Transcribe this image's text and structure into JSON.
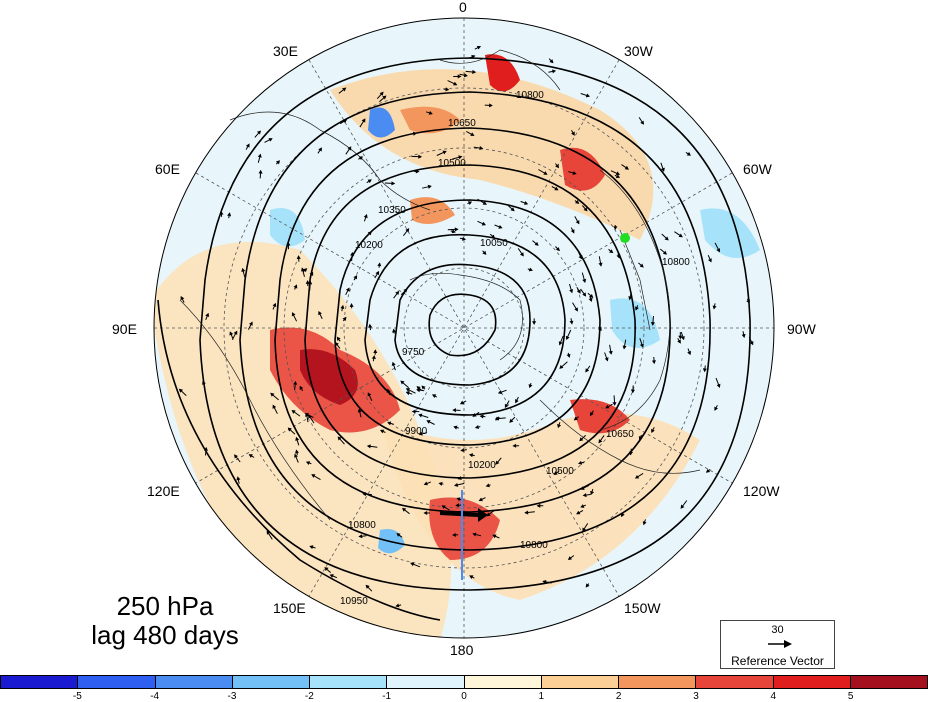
{
  "title": {
    "line1": "250 hPa",
    "line2": "lag 480 days"
  },
  "longitude_labels": [
    "0",
    "30W",
    "60W",
    "90W",
    "120W",
    "150W",
    "180",
    "150E",
    "120E",
    "90E",
    "60E",
    "30E"
  ],
  "contour_labels": [
    "10650",
    "10800",
    "10500",
    "10350",
    "10200",
    "10050",
    "9900",
    "9750",
    "10950"
  ],
  "reference_vector": {
    "magnitude": "30",
    "label": "Reference Vector"
  },
  "colorbar": {
    "ticks": [
      "-5",
      "-4",
      "-3",
      "-2",
      "-1",
      "0",
      "1",
      "2",
      "3",
      "4",
      "5"
    ],
    "colors": [
      "#1a1ad0",
      "#2f5ff0",
      "#4a8cf2",
      "#73c0f6",
      "#a6e3fa",
      "#dff4fd",
      "#fff5d9",
      "#fbcf96",
      "#f3965e",
      "#e8453a",
      "#e01e1e",
      "#a5101f"
    ]
  },
  "marker": {
    "color": "#22dd22"
  }
}
